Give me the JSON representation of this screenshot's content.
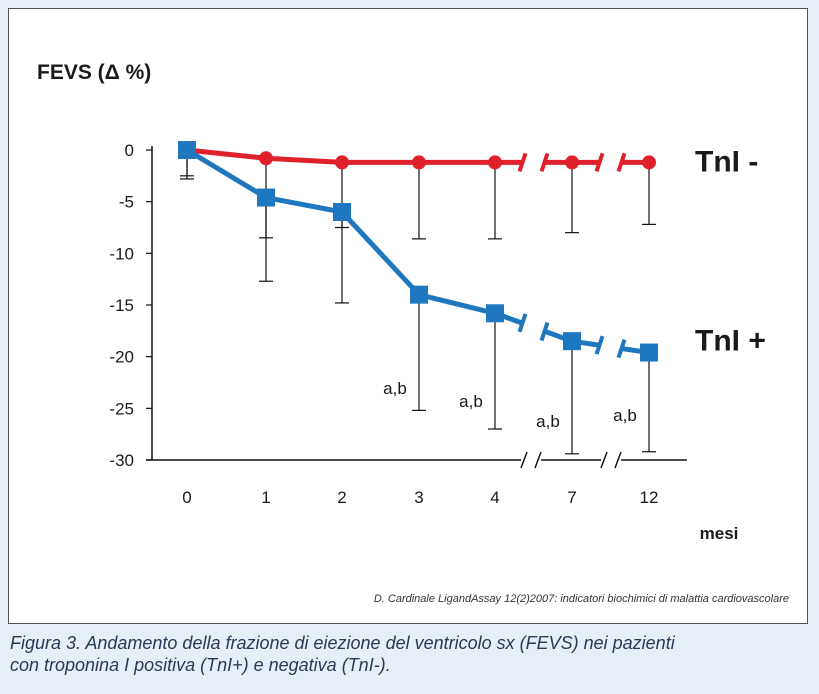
{
  "chart_data": {
    "type": "line",
    "ylabel": "FEVS (Δ %)",
    "xlabel": "mesi",
    "categories": [
      "0",
      "1",
      "2",
      "3",
      "4",
      "7",
      "12"
    ],
    "yticks": [
      0,
      -5,
      -10,
      -15,
      -20,
      -25,
      -30
    ],
    "ylim": [
      -30,
      0
    ],
    "grid": false,
    "axis_breaks_between": [
      [
        "4",
        "7"
      ],
      [
        "7",
        "12"
      ]
    ],
    "series": [
      {
        "name": "TnI -",
        "color": "#e0202a",
        "marker": "circle",
        "values": [
          0,
          -0.8,
          -1.2,
          -1.2,
          -1.2,
          -1.2,
          -1.2
        ],
        "error_low": [
          -2.5,
          -8.5,
          -7.5,
          -8.6,
          -8.6,
          -8.0,
          -7.2
        ]
      },
      {
        "name": "TnI +",
        "color": "#1f77bf",
        "marker": "square",
        "values": [
          0,
          -4.6,
          -6.0,
          -14.0,
          -15.8,
          -18.5,
          -19.6
        ],
        "error_low": [
          -2.8,
          -12.7,
          -14.8,
          -25.2,
          -27.0,
          -29.4,
          -29.2
        ]
      }
    ],
    "annotations": [
      {
        "x": "3",
        "text": "a,b"
      },
      {
        "x": "4",
        "text": "a,b"
      },
      {
        "x": "7",
        "text": "a,b"
      },
      {
        "x": "12",
        "text": "a,b"
      }
    ]
  },
  "source": "D. Cardinale  LigandAssay 12(2)2007: indicatori biochimici di malattia cardiovascolare",
  "caption": {
    "line1": "Figura 3. Andamento della frazione di eiezione del ventricolo sx (FEVS) nei pazienti",
    "line2": "con troponina I positiva (TnI+) e negativa (TnI-)."
  }
}
